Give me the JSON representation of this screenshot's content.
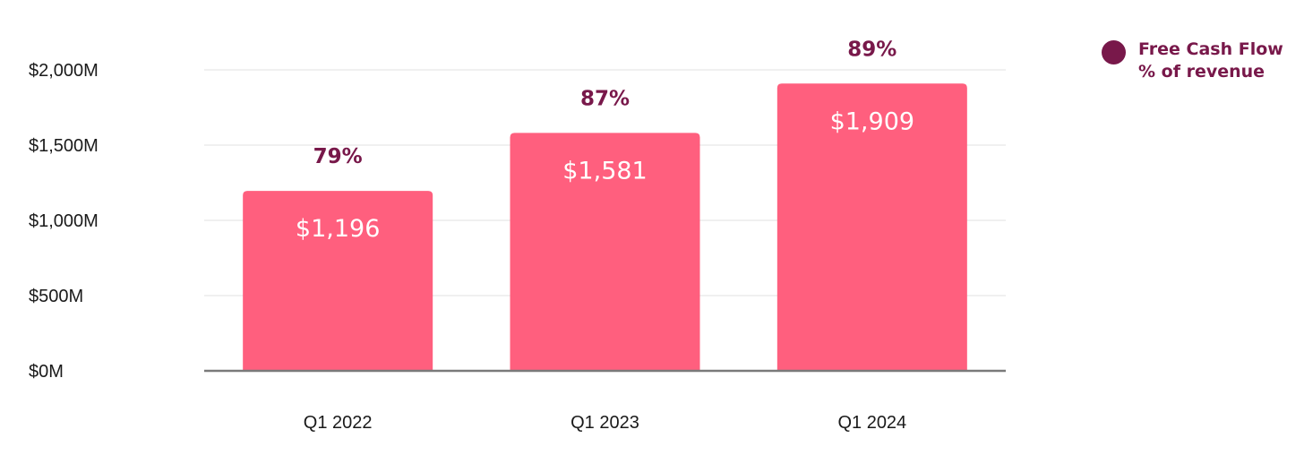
{
  "colors": {
    "bar": "#FF5F7E",
    "percent_text": "#78184A",
    "legend_dot": "#78184A",
    "grid": "#E6E6E6",
    "baseline": "#7A7A7A"
  },
  "legend": {
    "line1": "Free Cash Flow",
    "line2": "% of revenue"
  },
  "chart_data": {
    "type": "bar",
    "title": "",
    "xlabel": "",
    "ylabel": "",
    "categories": [
      "Q1 2022",
      "Q1 2023",
      "Q1 2024"
    ],
    "series": [
      {
        "values": [
          1196,
          1581,
          1909
        ],
        "value_labels": [
          "$1,196",
          "$1,581",
          "$1,909"
        ],
        "percent_labels": [
          "79%",
          "87%",
          "89%"
        ]
      }
    ],
    "ylim": [
      0,
      2000
    ],
    "yticks": [
      0,
      500,
      1000,
      1500,
      2000
    ],
    "ytick_labels": [
      "$0M",
      "$500M",
      "$1,000M",
      "$1,500M",
      "$2,000M"
    ],
    "grid": true,
    "legend_position": "top-right"
  }
}
